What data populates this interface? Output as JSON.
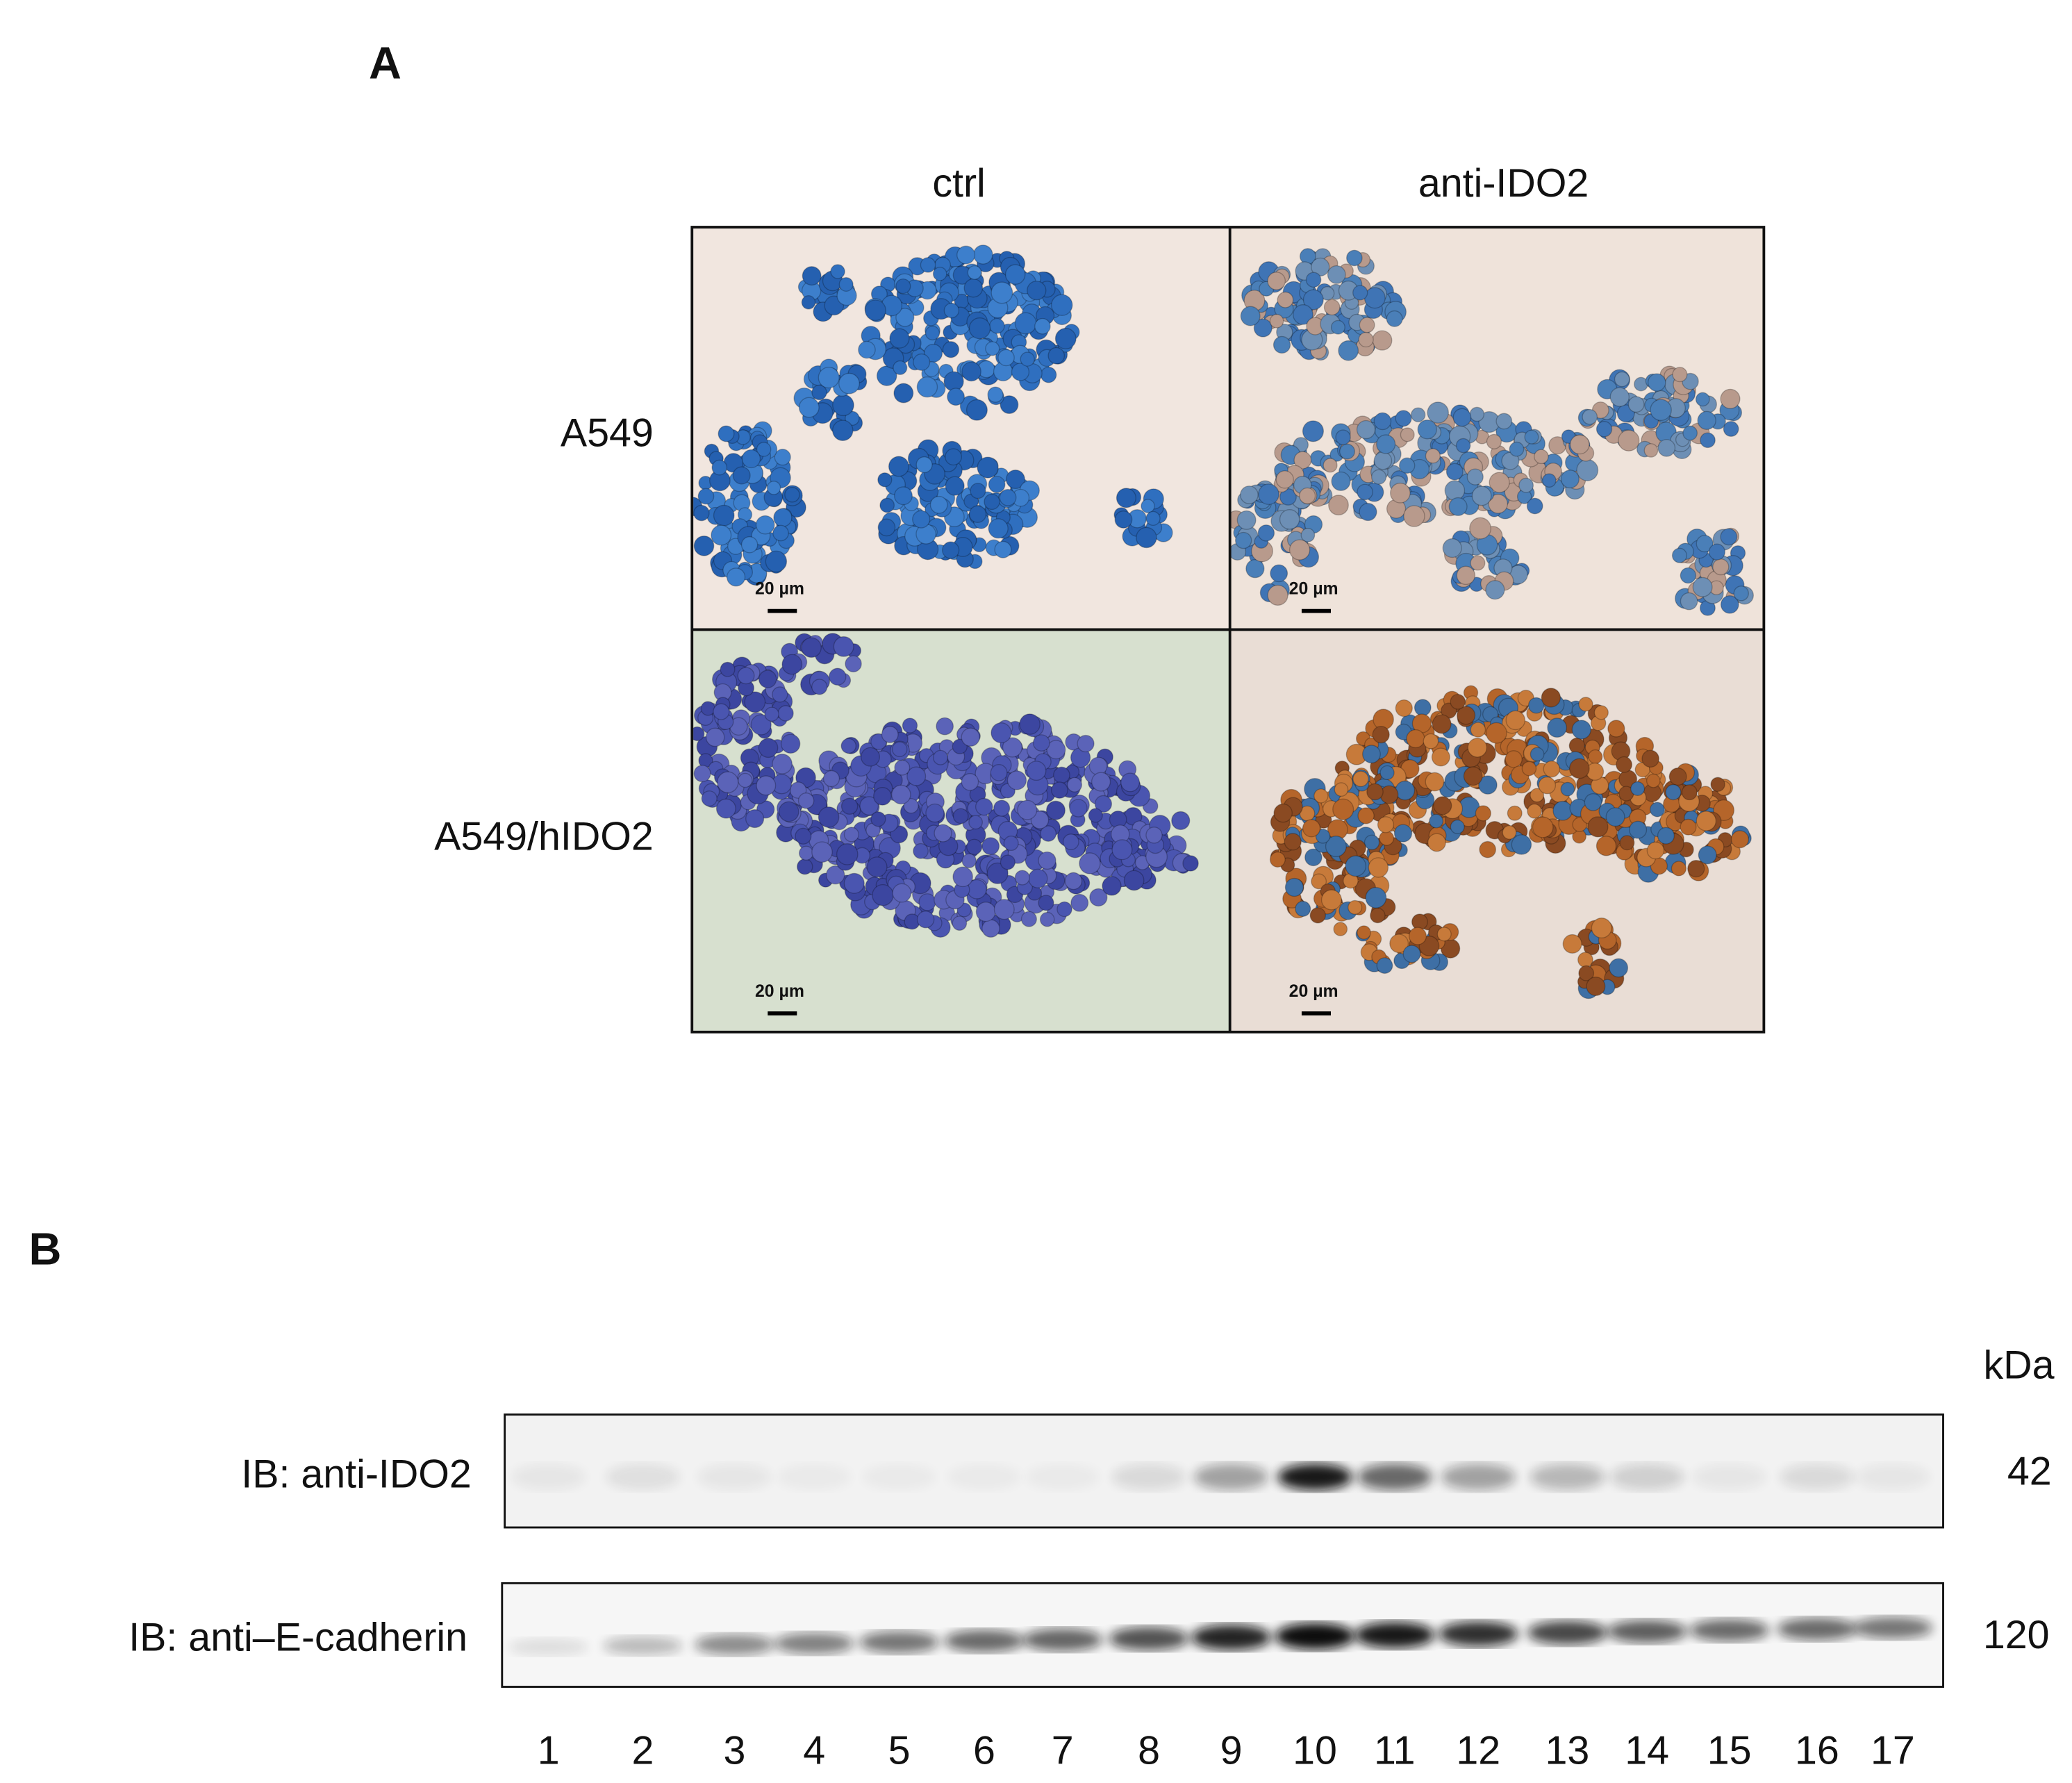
{
  "panel_a": {
    "label": "A",
    "columns": [
      "ctrl",
      "anti-IDO2"
    ],
    "rows": [
      "A549",
      "A549/hIDO2"
    ],
    "scale_bars": [
      "20 µm",
      "20 µm",
      "20 µm",
      "20 µm"
    ]
  },
  "panel_b": {
    "label": "B",
    "unit": "kDa",
    "blots": [
      {
        "label": "IB: anti-IDO2",
        "size": "42"
      },
      {
        "label": "IB: anti–E-cadherin",
        "size": "120"
      }
    ],
    "lanes": [
      "1",
      "2",
      "3",
      "4",
      "5",
      "6",
      "7",
      "8",
      "9",
      "10",
      "11",
      "12",
      "13",
      "14",
      "15",
      "16",
      "17"
    ]
  }
}
